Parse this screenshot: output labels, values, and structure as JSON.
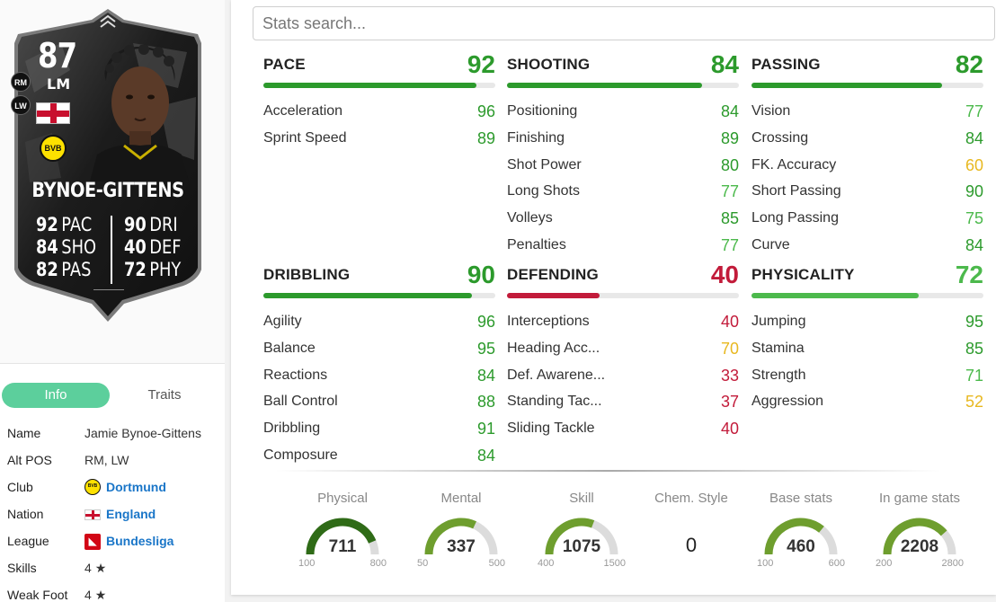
{
  "card": {
    "rating": "87",
    "position": "LM",
    "alt_positions": [
      "RM",
      "LW"
    ],
    "club_badge_text": "BVB",
    "name": "BYNOE-GITTENS",
    "stats_left": [
      {
        "value": "92",
        "label": "PAC"
      },
      {
        "value": "84",
        "label": "SHO"
      },
      {
        "value": "82",
        "label": "PAS"
      }
    ],
    "stats_right": [
      {
        "value": "90",
        "label": "DRI"
      },
      {
        "value": "40",
        "label": "DEF"
      },
      {
        "value": "72",
        "label": "PHY"
      }
    ]
  },
  "tabs": {
    "info": "Info",
    "traits": "Traits"
  },
  "info": {
    "name": {
      "key": "Name",
      "value": "Jamie Bynoe-Gittens"
    },
    "alt_pos": {
      "key": "Alt POS",
      "value": "RM, LW"
    },
    "club": {
      "key": "Club",
      "value": "Dortmund"
    },
    "nation": {
      "key": "Nation",
      "value": "England"
    },
    "league": {
      "key": "League",
      "value": "Bundesliga"
    },
    "skills": {
      "key": "Skills",
      "value": "4"
    },
    "weak_foot": {
      "key": "Weak Foot",
      "value": "4"
    }
  },
  "search": {
    "placeholder": "Stats search..."
  },
  "categories": {
    "pace": {
      "name": "PACE",
      "value": "92",
      "fill": 0.92,
      "color": "#2c9a2c",
      "subs": [
        {
          "name": "Acceleration",
          "value": "96",
          "cls": "c-green"
        },
        {
          "name": "Sprint Speed",
          "value": "89",
          "cls": "c-green"
        }
      ]
    },
    "shooting": {
      "name": "SHOOTING",
      "value": "84",
      "fill": 0.84,
      "color": "#2c9a2c",
      "subs": [
        {
          "name": "Positioning",
          "value": "84",
          "cls": "c-green"
        },
        {
          "name": "Finishing",
          "value": "89",
          "cls": "c-green"
        },
        {
          "name": "Shot Power",
          "value": "80",
          "cls": "c-green"
        },
        {
          "name": "Long Shots",
          "value": "77",
          "cls": "c-lgreen"
        },
        {
          "name": "Volleys",
          "value": "85",
          "cls": "c-green"
        },
        {
          "name": "Penalties",
          "value": "77",
          "cls": "c-lgreen"
        }
      ]
    },
    "passing": {
      "name": "PASSING",
      "value": "82",
      "fill": 0.82,
      "color": "#2c9a2c",
      "subs": [
        {
          "name": "Vision",
          "value": "77",
          "cls": "c-lgreen"
        },
        {
          "name": "Crossing",
          "value": "84",
          "cls": "c-green"
        },
        {
          "name": "FK. Accuracy",
          "value": "60",
          "cls": "c-yellow"
        },
        {
          "name": "Short Passing",
          "value": "90",
          "cls": "c-green"
        },
        {
          "name": "Long Passing",
          "value": "75",
          "cls": "c-lgreen"
        },
        {
          "name": "Curve",
          "value": "84",
          "cls": "c-green"
        }
      ]
    },
    "dribbling": {
      "name": "DRIBBLING",
      "value": "90",
      "fill": 0.9,
      "color": "#2c9a2c",
      "subs": [
        {
          "name": "Agility",
          "value": "96",
          "cls": "c-green"
        },
        {
          "name": "Balance",
          "value": "95",
          "cls": "c-green"
        },
        {
          "name": "Reactions",
          "value": "84",
          "cls": "c-green"
        },
        {
          "name": "Ball Control",
          "value": "88",
          "cls": "c-green"
        },
        {
          "name": "Dribbling",
          "value": "91",
          "cls": "c-green"
        },
        {
          "name": "Composure",
          "value": "84",
          "cls": "c-green"
        }
      ]
    },
    "defending": {
      "name": "DEFENDING",
      "value": "40",
      "fill": 0.4,
      "color": "#c21b3a",
      "subs": [
        {
          "name": "Interceptions",
          "value": "40",
          "cls": "c-red"
        },
        {
          "name": "Heading Acc...",
          "value": "70",
          "cls": "c-yellow"
        },
        {
          "name": "Def. Awarene...",
          "value": "33",
          "cls": "c-red"
        },
        {
          "name": "Standing Tac...",
          "value": "37",
          "cls": "c-red"
        },
        {
          "name": "Sliding Tackle",
          "value": "40",
          "cls": "c-red"
        }
      ]
    },
    "physicality": {
      "name": "PHYSICALITY",
      "value": "72",
      "fill": 0.72,
      "color": "#4cb94c",
      "subs": [
        {
          "name": "Jumping",
          "value": "95",
          "cls": "c-green"
        },
        {
          "name": "Stamina",
          "value": "85",
          "cls": "c-green"
        },
        {
          "name": "Strength",
          "value": "71",
          "cls": "c-lgreen"
        },
        {
          "name": "Aggression",
          "value": "52",
          "cls": "c-yellow"
        }
      ]
    }
  },
  "gauges": {
    "physical": {
      "label": "Physical",
      "value": "711",
      "min": "100",
      "max": "800",
      "fill": 0.873,
      "color": "#2f6b17"
    },
    "mental": {
      "label": "Mental",
      "value": "337",
      "min": "50",
      "max": "500",
      "fill": 0.638,
      "color": "#6e9e2e"
    },
    "skill": {
      "label": "Skill",
      "value": "1075",
      "min": "400",
      "max": "1500",
      "fill": 0.614,
      "color": "#6e9e2e"
    },
    "chem_style": {
      "label": "Chem. Style",
      "value": "0"
    },
    "base_stats": {
      "label": "Base stats",
      "value": "460",
      "min": "100",
      "max": "600",
      "fill": 0.72,
      "color": "#6e9e2e"
    },
    "in_game_stats": {
      "label": "In game stats",
      "value": "2208",
      "min": "200",
      "max": "2800",
      "fill": 0.772,
      "color": "#6e9e2e"
    }
  }
}
